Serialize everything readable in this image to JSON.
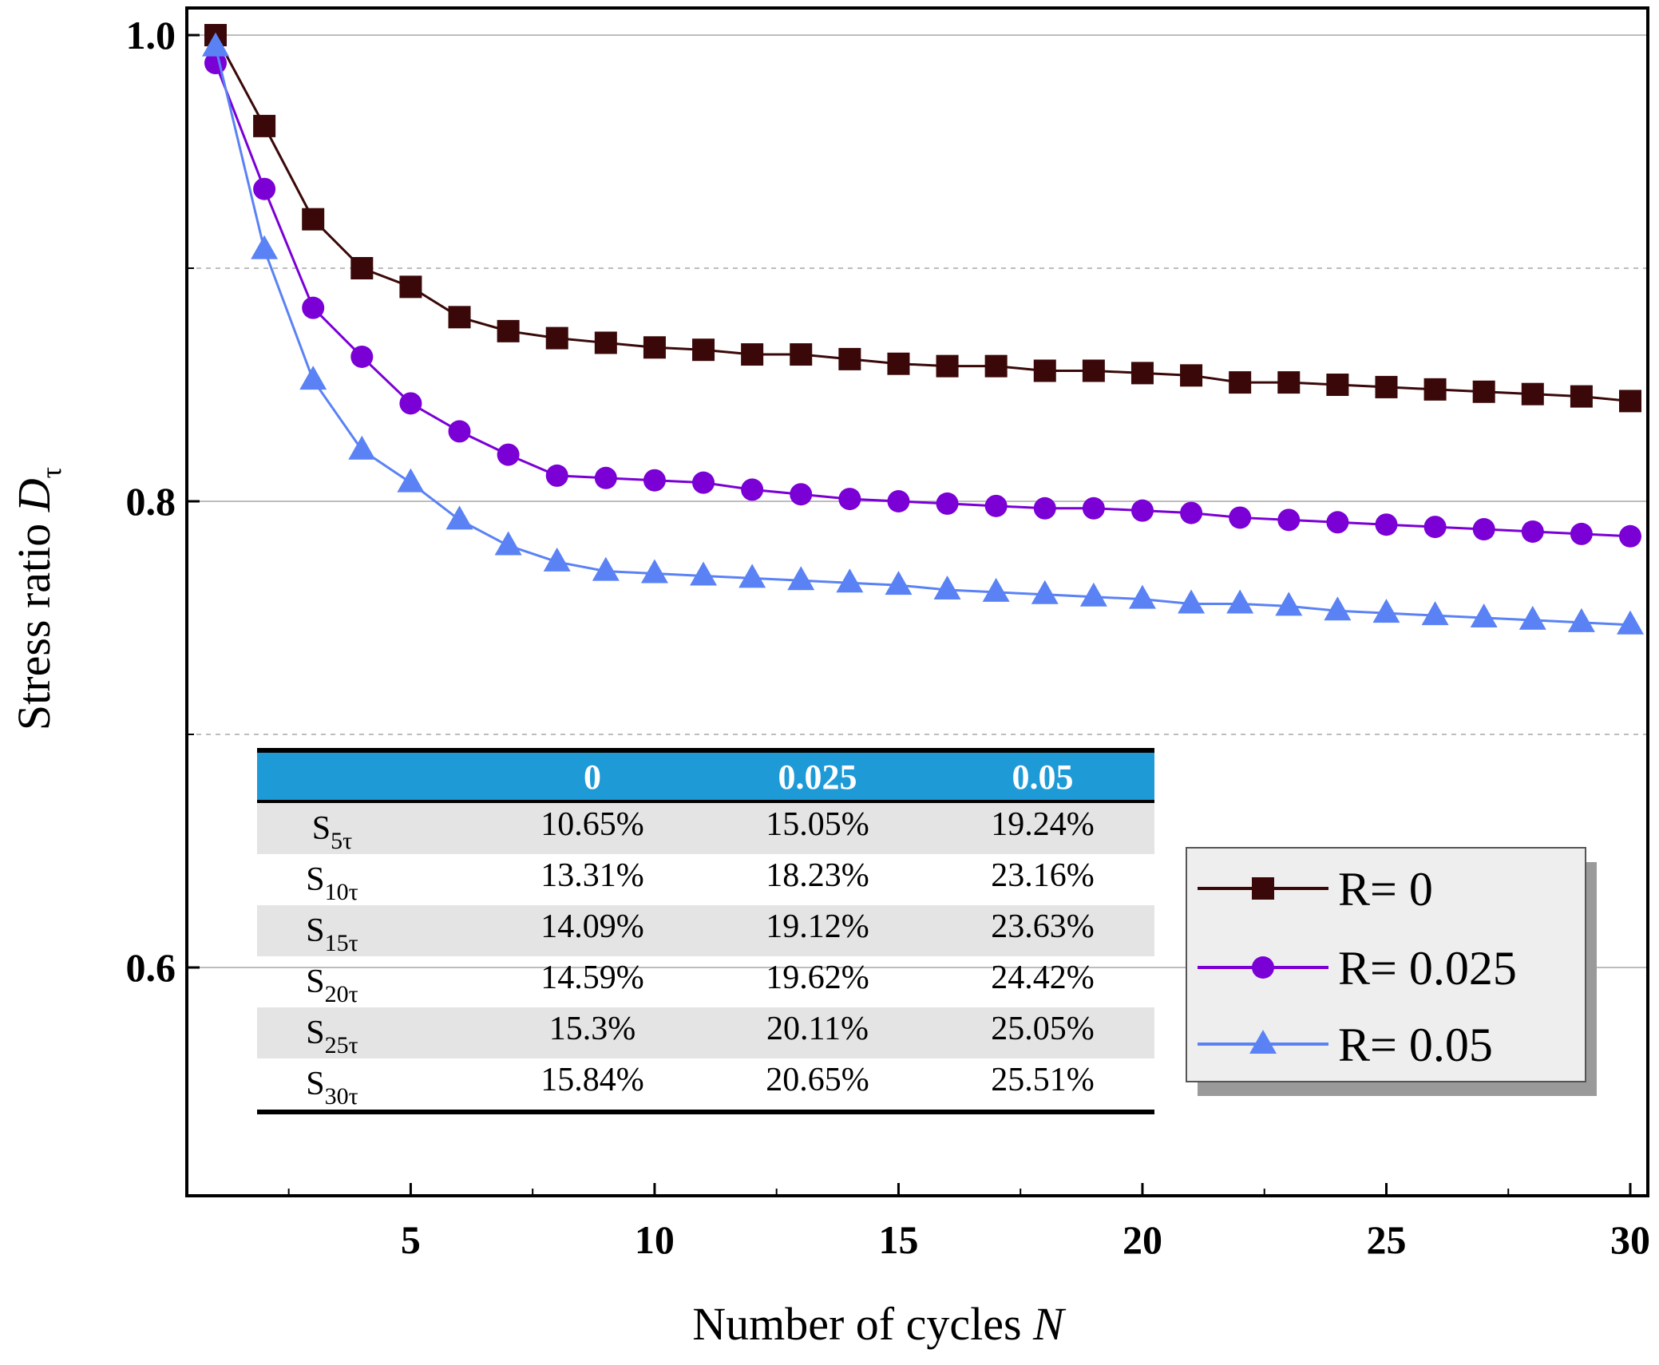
{
  "chart_data": {
    "type": "line",
    "xlabel": "Number of cycles",
    "xlabel_var": "N",
    "ylabel": "Stress ratio",
    "ylabel_var": "D",
    "ylabel_sub": "τ",
    "xlim": [
      0.2,
      30.3
    ],
    "ylim": [
      0.5,
      1.0
    ],
    "x_ticks": [
      5,
      10,
      15,
      20,
      25,
      30
    ],
    "y_ticks": [
      0.6,
      0.8,
      1.0
    ],
    "y_tick_labels": [
      "0.6",
      "0.8",
      "1.0"
    ],
    "grid": true,
    "x": [
      1,
      2,
      3,
      4,
      5,
      6,
      7,
      8,
      9,
      10,
      11,
      12,
      13,
      14,
      15,
      16,
      17,
      18,
      19,
      20,
      21,
      22,
      23,
      24,
      25,
      26,
      27,
      28,
      29,
      30
    ],
    "series": [
      {
        "name": "R= 0",
        "color": "#3a0808",
        "marker": "square",
        "values": [
          1.0,
          0.961,
          0.921,
          0.9,
          0.892,
          0.879,
          0.873,
          0.87,
          0.868,
          0.866,
          0.865,
          0.863,
          0.863,
          0.861,
          0.859,
          0.858,
          0.858,
          0.856,
          0.856,
          0.855,
          0.854,
          0.851,
          0.851,
          0.85,
          0.849,
          0.848,
          0.847,
          0.846,
          0.845,
          0.843
        ]
      },
      {
        "name": "R= 0.025",
        "color": "#7a00d6",
        "marker": "circle",
        "values": [
          0.988,
          0.934,
          0.883,
          0.862,
          0.842,
          0.83,
          0.82,
          0.811,
          0.81,
          0.809,
          0.808,
          0.805,
          0.803,
          0.801,
          0.8,
          0.799,
          0.798,
          0.797,
          0.797,
          0.796,
          0.795,
          0.793,
          0.792,
          0.791,
          0.79,
          0.789,
          0.788,
          0.787,
          0.786,
          0.785
        ]
      },
      {
        "name": "R= 0.05",
        "color": "#5a82f5",
        "marker": "triangle",
        "values": [
          0.995,
          0.908,
          0.852,
          0.822,
          0.808,
          0.792,
          0.781,
          0.774,
          0.77,
          0.769,
          0.768,
          0.767,
          0.766,
          0.765,
          0.764,
          0.762,
          0.761,
          0.76,
          0.759,
          0.758,
          0.756,
          0.756,
          0.755,
          0.753,
          0.752,
          0.751,
          0.75,
          0.749,
          0.748,
          0.747
        ]
      }
    ]
  },
  "table": {
    "headers": [
      "",
      "0",
      "0.025",
      "0.05"
    ],
    "rows": [
      {
        "label": "S",
        "sub": "5τ",
        "cells": [
          "10.65%",
          "15.05%",
          "19.24%"
        ]
      },
      {
        "label": "S",
        "sub": "10τ",
        "cells": [
          "13.31%",
          "18.23%",
          "23.16%"
        ]
      },
      {
        "label": "S",
        "sub": "15τ",
        "cells": [
          "14.09%",
          "19.12%",
          "23.63%"
        ]
      },
      {
        "label": "S",
        "sub": "20τ",
        "cells": [
          "14.59%",
          "19.62%",
          "24.42%"
        ]
      },
      {
        "label": "S",
        "sub": "25τ",
        "cells": [
          "15.3%",
          "20.11%",
          "25.05%"
        ]
      },
      {
        "label": "S",
        "sub": "30τ",
        "cells": [
          "15.84%",
          "20.65%",
          "25.51%"
        ]
      }
    ],
    "header_color": "#1e9ad6",
    "stripe_color": "#e4e4e4"
  }
}
